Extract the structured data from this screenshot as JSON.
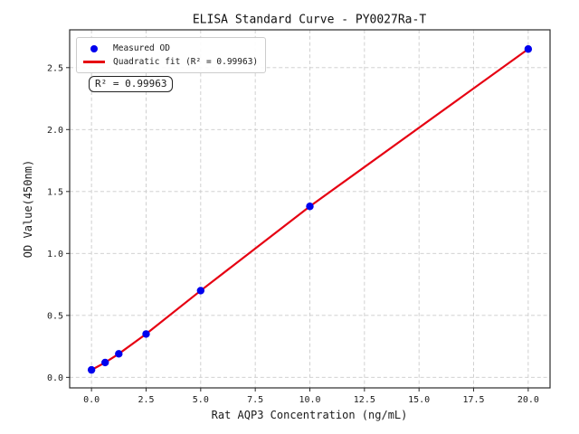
{
  "chart_data": {
    "type": "scatter",
    "title": "ELISA Standard Curve - PY0027Ra-T",
    "xlabel": "Rat AQP3 Concentration (ng/mL)",
    "ylabel": "OD Value(450nm)",
    "annotation": "R² = 0.99963",
    "legend_position": "upper left",
    "grid": true,
    "xlim": [
      -1,
      21
    ],
    "ylim": [
      -0.085,
      2.805
    ],
    "xticks": [
      0,
      2.5,
      5,
      7.5,
      10,
      12.5,
      15,
      17.5,
      20
    ],
    "yticks": [
      0,
      0.5,
      1,
      1.5,
      2,
      2.5
    ],
    "series": [
      {
        "name": "Measured OD",
        "type": "scatter",
        "color": "#0000ee",
        "x": [
          0,
          0.625,
          1.25,
          2.5,
          5,
          10,
          20
        ],
        "y": [
          0.06,
          0.12,
          0.19,
          0.35,
          0.7,
          1.38,
          2.65
        ]
      },
      {
        "name": "Quadratic fit (R² = 0.99963)",
        "type": "line",
        "color": "#e60012",
        "r_squared": 0.99963
      }
    ]
  }
}
